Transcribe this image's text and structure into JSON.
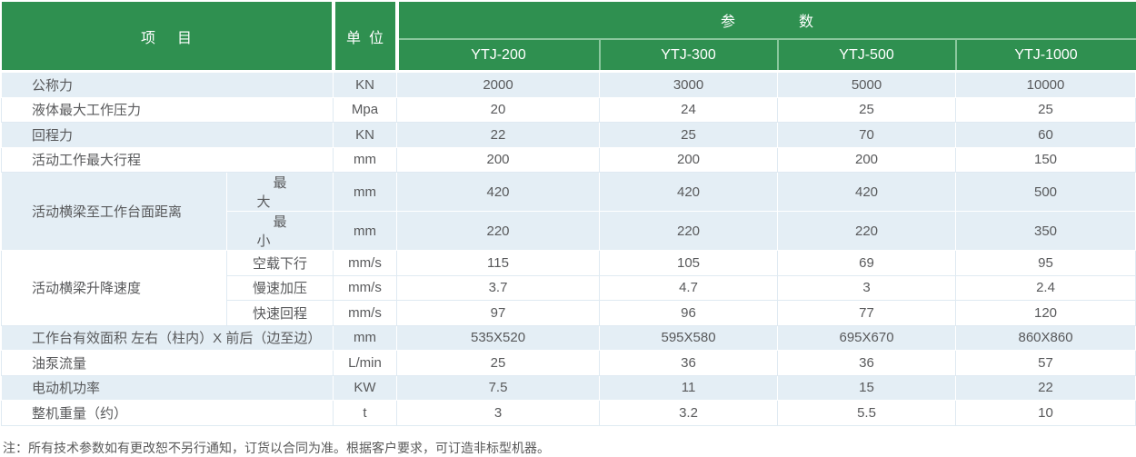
{
  "header": {
    "item_label": "项目",
    "unit_label": "单位",
    "params_label": "参数",
    "models": [
      "YTJ-200",
      "YTJ-300",
      "YTJ-500",
      "YTJ-1000"
    ]
  },
  "sections": [
    {
      "label": "公称力",
      "unit": "KN",
      "values": [
        "2000",
        "3000",
        "5000",
        "10000"
      ]
    },
    {
      "label": "液体最大工作压力",
      "unit": "Mpa",
      "values": [
        "20",
        "24",
        "25",
        "25"
      ]
    },
    {
      "label": "回程力",
      "unit": "KN",
      "values": [
        "22",
        "25",
        "70",
        "60"
      ]
    },
    {
      "label": "活动工作最大行程",
      "unit": "mm",
      "values": [
        "200",
        "200",
        "200",
        "150"
      ]
    },
    {
      "label": "活动横梁至工作台面距离",
      "subrows": [
        {
          "label": "最大",
          "spread": true,
          "unit": "mm",
          "values": [
            "420",
            "420",
            "420",
            "500"
          ]
        },
        {
          "label": "最小",
          "spread": true,
          "unit": "mm",
          "values": [
            "220",
            "220",
            "220",
            "350"
          ]
        }
      ]
    },
    {
      "label": "活动横梁升降速度",
      "subrows": [
        {
          "label": "空载下行",
          "unit": "mm/s",
          "values": [
            "115",
            "105",
            "69",
            "95"
          ]
        },
        {
          "label": "慢速加压",
          "unit": "mm/s",
          "values": [
            "3.7",
            "4.7",
            "3",
            "2.4"
          ]
        },
        {
          "label": "快速回程",
          "unit": "mm/s",
          "values": [
            "97",
            "96",
            "77",
            "120"
          ]
        }
      ]
    },
    {
      "label": "工作台有效面积 左右（柱内）X 前后（边至边）",
      "unit": "mm",
      "values": [
        "535X520",
        "595X580",
        "695X670",
        "860X860"
      ]
    },
    {
      "label": "油泵流量",
      "unit": "L/min",
      "values": [
        "25",
        "36",
        "36",
        "57"
      ]
    },
    {
      "label": "电动机功率",
      "unit": "KW",
      "values": [
        "7.5",
        "11",
        "15",
        "22"
      ]
    },
    {
      "label": "整机重量（约）",
      "unit": "t",
      "values": [
        "3",
        "3.2",
        "5.5",
        "10"
      ]
    }
  ],
  "note": "注：所有技术参数如有更改恕不另行通知，订货以合同为准。根据客户要求，可订造非标型机器。",
  "colors": {
    "header_green": "#2F9050",
    "header_divider_green": "#8AC79D",
    "row_blue": "#E4EEF5",
    "row_white": "#FFFFFF",
    "grid_on_white": "#DFEAF2",
    "text_gray": "#58595B",
    "header_text": "#FFFFFF"
  }
}
